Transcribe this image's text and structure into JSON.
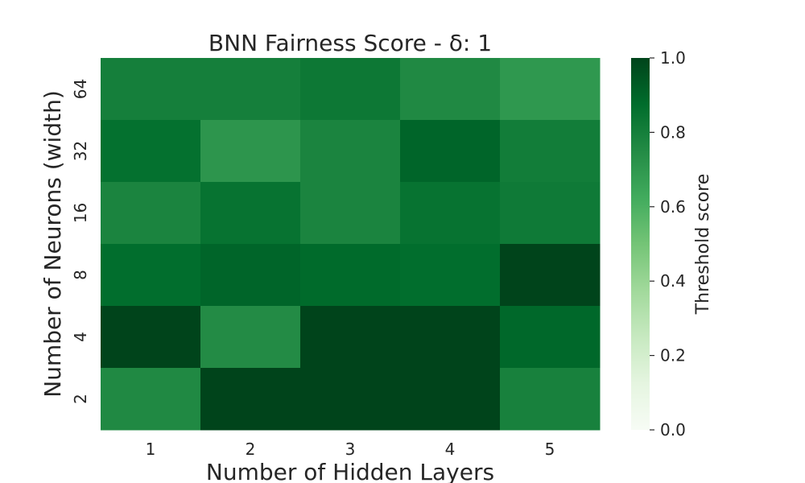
{
  "chart_data": {
    "type": "heatmap",
    "title": "BNN Fairness Score - δ: 1",
    "xlabel": "Number of Hidden Layers",
    "ylabel": "Number of Neurons (width)",
    "x_categories": [
      "1",
      "2",
      "3",
      "4",
      "5"
    ],
    "y_categories": [
      "64",
      "32",
      "16",
      "8",
      "4",
      "2"
    ],
    "values": [
      [
        0.8,
        0.8,
        0.83,
        0.76,
        0.7
      ],
      [
        0.86,
        0.71,
        0.78,
        0.9,
        0.81
      ],
      [
        0.78,
        0.85,
        0.78,
        0.85,
        0.82
      ],
      [
        0.87,
        0.9,
        0.88,
        0.87,
        1.0
      ],
      [
        1.0,
        0.75,
        1.0,
        1.0,
        0.89
      ],
      [
        0.76,
        1.0,
        1.0,
        1.0,
        0.79
      ]
    ],
    "colorbar": {
      "label": "Threshold score",
      "range": [
        0.0,
        1.0
      ],
      "ticks": [
        "0.0",
        "0.2",
        "0.4",
        "0.6",
        "0.8",
        "1.0"
      ],
      "colormap": "Greens"
    },
    "grid": false
  }
}
